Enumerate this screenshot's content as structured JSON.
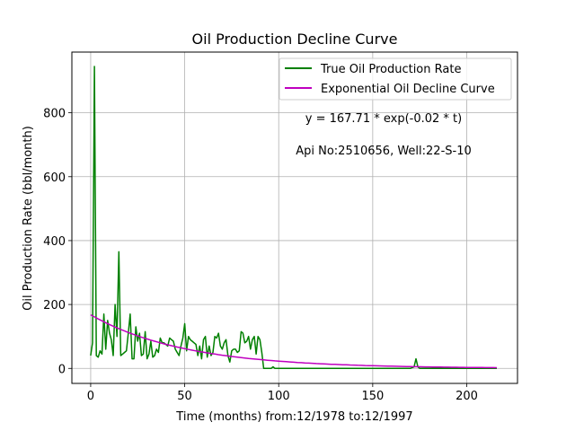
{
  "chart_data": {
    "type": "line",
    "title": "Oil Production Decline Curve",
    "xlabel": "Time (months) from:12/1978 to:12/1997",
    "ylabel": "Oil Production Rate (bbl/month)",
    "xlim": [
      -10,
      227
    ],
    "ylim": [
      -47,
      990
    ],
    "xticks": [
      0,
      50,
      100,
      150,
      200
    ],
    "yticks": [
      0,
      200,
      400,
      600,
      800
    ],
    "grid": true,
    "legend_position": "top-right",
    "annotations": [
      "y = 167.71 * exp(-0.02 * t)",
      "Api No:2510656, Well:22-S-10"
    ],
    "series": [
      {
        "name": "True Oil Production Rate",
        "color": "#008000",
        "x": [
          0,
          1,
          2,
          3,
          4,
          5,
          6,
          7,
          8,
          9,
          10,
          11,
          12,
          13,
          14,
          15,
          16,
          17,
          18,
          19,
          20,
          21,
          22,
          23,
          24,
          25,
          26,
          27,
          28,
          29,
          30,
          31,
          32,
          33,
          34,
          35,
          36,
          37,
          38,
          39,
          40,
          41,
          42,
          43,
          44,
          45,
          46,
          47,
          48,
          49,
          50,
          51,
          52,
          53,
          54,
          55,
          56,
          57,
          58,
          59,
          60,
          61,
          62,
          63,
          64,
          65,
          66,
          67,
          68,
          69,
          70,
          71,
          72,
          73,
          74,
          75,
          76,
          77,
          78,
          79,
          80,
          81,
          82,
          83,
          84,
          85,
          86,
          87,
          88,
          89,
          90,
          91,
          92,
          93,
          94,
          95,
          96,
          97,
          98,
          99,
          100,
          101,
          102,
          103,
          110,
          120,
          130,
          140,
          150,
          160,
          170,
          172,
          173,
          174,
          175,
          180,
          190,
          200,
          210,
          216
        ],
        "y": [
          40,
          80,
          945,
          40,
          35,
          55,
          45,
          170,
          60,
          150,
          110,
          90,
          40,
          200,
          100,
          365,
          40,
          45,
          50,
          55,
          110,
          170,
          30,
          30,
          130,
          85,
          110,
          40,
          45,
          115,
          30,
          45,
          85,
          35,
          40,
          60,
          50,
          95,
          80,
          80,
          75,
          70,
          95,
          90,
          85,
          60,
          50,
          40,
          70,
          95,
          140,
          55,
          100,
          90,
          85,
          80,
          75,
          40,
          70,
          30,
          90,
          100,
          35,
          70,
          40,
          50,
          100,
          95,
          110,
          70,
          60,
          80,
          90,
          40,
          20,
          55,
          60,
          60,
          50,
          55,
          115,
          110,
          80,
          85,
          100,
          60,
          90,
          100,
          45,
          100,
          90,
          50,
          0,
          0,
          0,
          0,
          0,
          5,
          0,
          0,
          0,
          0,
          0,
          0,
          0,
          0,
          0,
          0,
          0,
          0,
          0,
          5,
          30,
          5,
          0,
          0,
          0,
          0,
          0,
          0
        ]
      },
      {
        "name": "Exponential Oil Decline Curve",
        "color": "#bf00bf",
        "a": 167.71,
        "b": 0.02,
        "x_range": [
          0,
          216
        ]
      }
    ]
  }
}
